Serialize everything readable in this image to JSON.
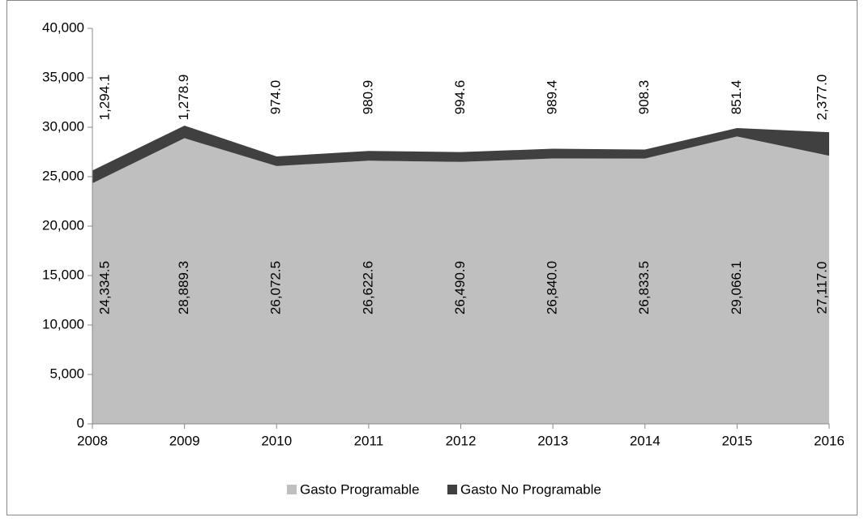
{
  "chart_data": {
    "type": "area",
    "categories": [
      "2008",
      "2009",
      "2010",
      "2011",
      "2012",
      "2013",
      "2014",
      "2015",
      "2016"
    ],
    "series": [
      {
        "name": "Gasto Programable",
        "color": "#bfbfbf",
        "values": [
          24334.5,
          28889.3,
          26072.5,
          26622.6,
          26490.9,
          26840.0,
          26833.5,
          29066.1,
          27117.0
        ],
        "value_labels": [
          "24,334.5",
          "28,889.3",
          "26,072.5",
          "26,622.6",
          "26,490.9",
          "26,840.0",
          "26,833.5",
          "29,066.1",
          "27,117.0"
        ]
      },
      {
        "name": "Gasto No Programable",
        "color": "#404040",
        "values": [
          1294.1,
          1278.9,
          974.0,
          980.9,
          994.6,
          989.4,
          908.3,
          851.4,
          2377.0
        ],
        "value_labels": [
          "1,294.1",
          "1,278.9",
          "974.0",
          "980.9",
          "994.6",
          "989.4",
          "908.3",
          "851.4",
          "2,377.0"
        ]
      }
    ],
    "stacked": true,
    "ylim": [
      0,
      40000
    ],
    "yticks": [
      0,
      {
        "value": 5000,
        "label": "5,000"
      },
      {
        "value": 10000,
        "label": "10,000"
      },
      {
        "value": 15000,
        "label": "15,000"
      },
      {
        "value": 20000,
        "label": "20,000"
      },
      {
        "value": 25000,
        "label": "25,000"
      },
      {
        "value": 30000,
        "label": "30,000"
      },
      {
        "value": 35000,
        "label": "35,000"
      },
      {
        "value": 40000,
        "label": "40,000"
      }
    ],
    "legend": "bottom"
  }
}
